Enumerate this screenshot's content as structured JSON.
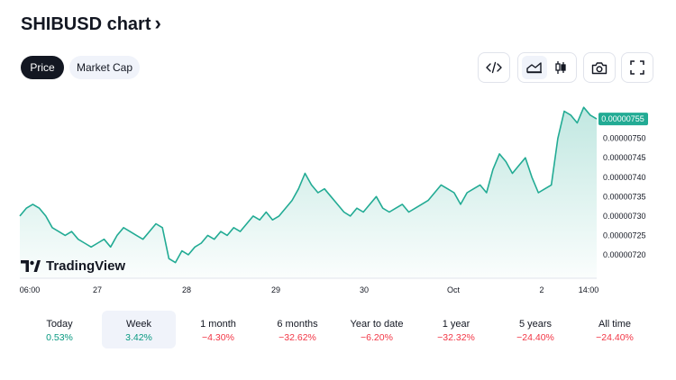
{
  "header": {
    "title": "SHIBUSD chart",
    "chevron": "›"
  },
  "tabs": [
    {
      "label": "Price",
      "active": true
    },
    {
      "label": "Market Cap",
      "active": false
    }
  ],
  "toolbar": {
    "embed_icon": "code-icon",
    "area_icon": "area-chart-icon",
    "candle_icon": "candlestick-icon",
    "snapshot_icon": "camera-icon",
    "fullscreen_icon": "fullscreen-icon"
  },
  "watermark": {
    "text": "TradingView"
  },
  "colors": {
    "line": "#22ab94",
    "fill": "#22ab94",
    "positive": "#089981",
    "negative": "#f23645",
    "price_tag": "#22ab94"
  },
  "periods": [
    {
      "label": "Today",
      "value": "0.53%",
      "trend": "pos",
      "selected": false
    },
    {
      "label": "Week",
      "value": "3.42%",
      "trend": "pos",
      "selected": true
    },
    {
      "label": "1 month",
      "value": "−4.30%",
      "trend": "neg",
      "selected": false
    },
    {
      "label": "6 months",
      "value": "−32.62%",
      "trend": "neg",
      "selected": false
    },
    {
      "label": "Year to date",
      "value": "−6.20%",
      "trend": "neg",
      "selected": false
    },
    {
      "label": "1 year",
      "value": "−32.32%",
      "trend": "neg",
      "selected": false
    },
    {
      "label": "5 years",
      "value": "−24.40%",
      "trend": "neg",
      "selected": false
    },
    {
      "label": "All time",
      "value": "−24.40%",
      "trend": "neg",
      "selected": false
    }
  ],
  "chart_data": {
    "type": "area",
    "title": "",
    "xlabel": "",
    "ylabel": "",
    "x_ticks": [
      "06:00",
      "27",
      "28",
      "29",
      "30",
      "Oct",
      "2",
      "14:00"
    ],
    "y_ticks": [
      7.2e-06,
      7.25e-06,
      7.3e-06,
      7.35e-06,
      7.4e-06,
      7.45e-06,
      7.5e-06
    ],
    "y_tick_labels": [
      "0.00000720",
      "0.00000725",
      "0.00000730",
      "0.00000735",
      "0.00000740",
      "0.00000745",
      "0.00000750"
    ],
    "ylim": [
      7.172e-06,
      7.613e-06
    ],
    "last_price_label": "0.00000755",
    "last_price": 7.55e-06,
    "grid": false,
    "series": [
      {
        "values": [
          7.3e-06,
          7.32e-06,
          7.33e-06,
          7.32e-06,
          7.3e-06,
          7.27e-06,
          7.26e-06,
          7.25e-06,
          7.26e-06,
          7.24e-06,
          7.23e-06,
          7.22e-06,
          7.23e-06,
          7.24e-06,
          7.22e-06,
          7.25e-06,
          7.27e-06,
          7.26e-06,
          7.25e-06,
          7.24e-06,
          7.26e-06,
          7.28e-06,
          7.27e-06,
          7.19e-06,
          7.18e-06,
          7.21e-06,
          7.2e-06,
          7.22e-06,
          7.23e-06,
          7.25e-06,
          7.24e-06,
          7.26e-06,
          7.25e-06,
          7.27e-06,
          7.26e-06,
          7.28e-06,
          7.3e-06,
          7.29e-06,
          7.31e-06,
          7.29e-06,
          7.3e-06,
          7.32e-06,
          7.34e-06,
          7.37e-06,
          7.41e-06,
          7.38e-06,
          7.36e-06,
          7.37e-06,
          7.35e-06,
          7.33e-06,
          7.31e-06,
          7.3e-06,
          7.32e-06,
          7.31e-06,
          7.33e-06,
          7.35e-06,
          7.32e-06,
          7.31e-06,
          7.32e-06,
          7.33e-06,
          7.31e-06,
          7.32e-06,
          7.33e-06,
          7.34e-06,
          7.36e-06,
          7.38e-06,
          7.37e-06,
          7.36e-06,
          7.33e-06,
          7.36e-06,
          7.37e-06,
          7.38e-06,
          7.36e-06,
          7.42e-06,
          7.46e-06,
          7.44e-06,
          7.41e-06,
          7.43e-06,
          7.45e-06,
          7.4e-06,
          7.36e-06,
          7.37e-06,
          7.38e-06,
          7.5e-06,
          7.57e-06,
          7.56e-06,
          7.54e-06,
          7.58e-06,
          7.56e-06,
          7.55e-06
        ]
      }
    ]
  }
}
